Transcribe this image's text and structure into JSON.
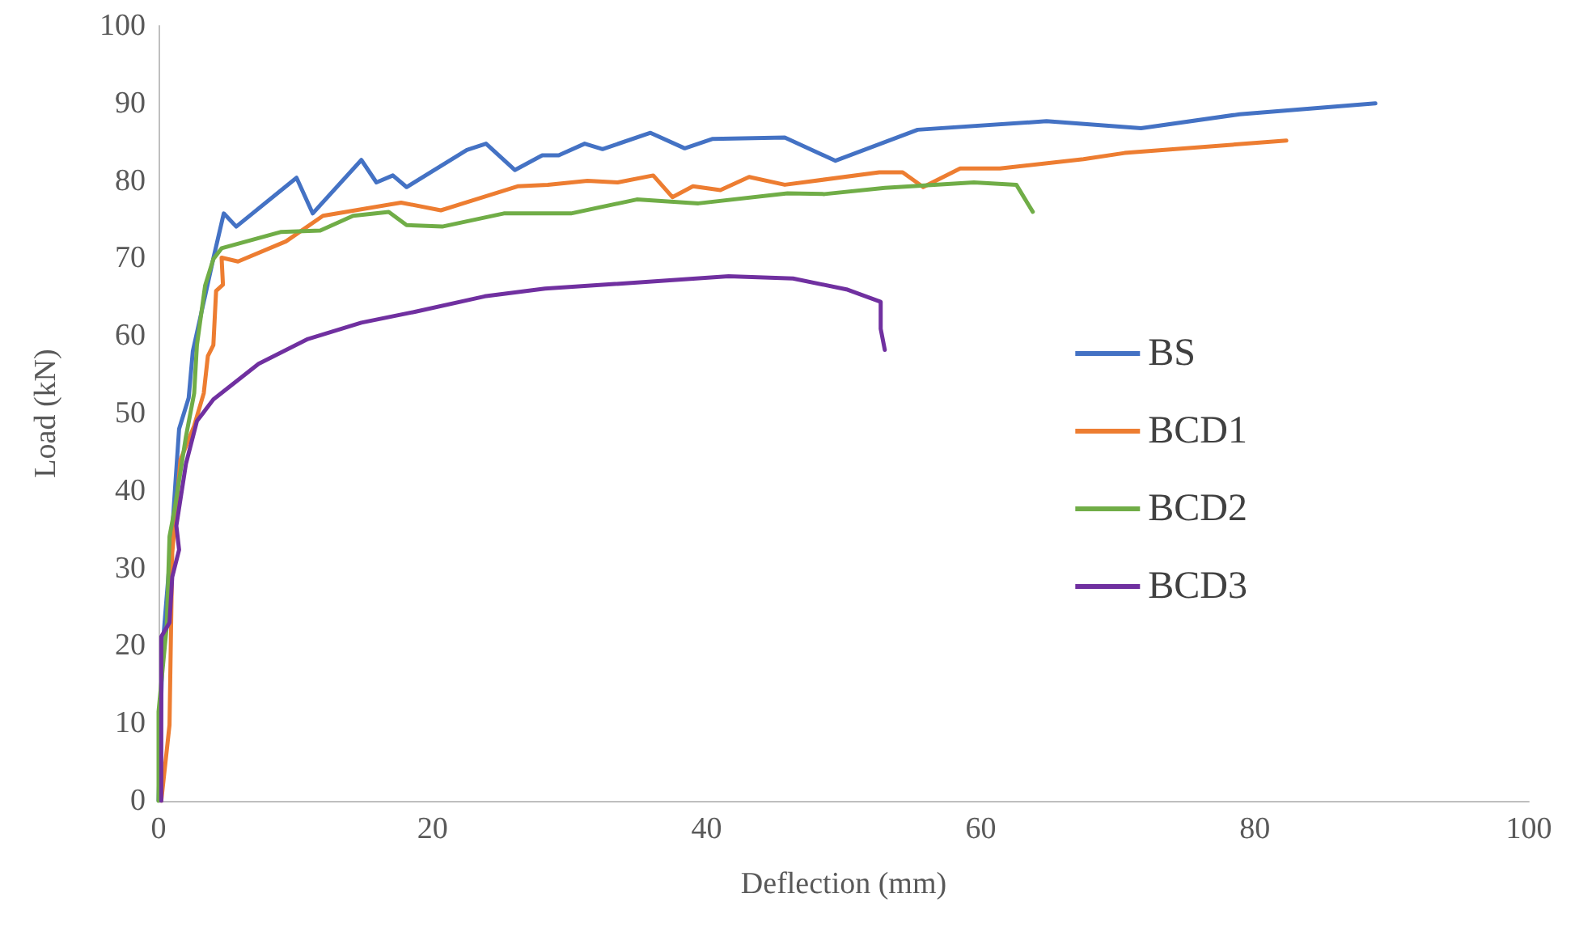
{
  "chart_data": {
    "type": "line",
    "xlabel": "Deflection (mm)",
    "ylabel": "Load (kN)",
    "xlim": [
      0,
      100
    ],
    "xticks": [
      0,
      20,
      40,
      60,
      80,
      100
    ],
    "ylim": [
      0,
      100
    ],
    "yticks": [
      0,
      10,
      20,
      30,
      40,
      50,
      60,
      70,
      80,
      90,
      100
    ],
    "grid": false,
    "legend": "right",
    "marker": "none",
    "line_style": "solid",
    "series": [
      {
        "name": "BS",
        "color": "#4472c4",
        "x": [
          0,
          0.3,
          1,
          1.5,
          2.2,
          2.5,
          3,
          4,
          4.76,
          5.67,
          10.07,
          11.25,
          14.8,
          15.9,
          17.1,
          18.1,
          22.5,
          23.9,
          26.0,
          28.0,
          29.2,
          31.1,
          32.4,
          35.9,
          38.4,
          40.4,
          45.7,
          49.4,
          55.4,
          64.8,
          71.7,
          78.9,
          88.8
        ],
        "values": [
          0,
          20,
          35,
          48,
          52,
          58,
          62,
          70,
          75.8,
          74.1,
          80.4,
          75.8,
          82.7,
          79.8,
          80.7,
          79.2,
          84,
          84.8,
          81.4,
          83.3,
          83.3,
          84.8,
          84.1,
          86.2,
          84.2,
          85.4,
          85.6,
          82.6,
          86.6,
          87.7,
          86.8,
          88.6,
          90
        ]
      },
      {
        "name": "BCD1",
        "color": "#ed7d31",
        "x": [
          0.2,
          0.8,
          1,
          1.6,
          2.6,
          3.3,
          3.6,
          4,
          4.2,
          4.7,
          4.6,
          5.8,
          9.3,
          12.0,
          17.7,
          20.6,
          26.2,
          28.4,
          31.3,
          33.5,
          36.1,
          37.5,
          39,
          41,
          43.1,
          45.7,
          52.6,
          54.3,
          55.8,
          58.5,
          61.4,
          67.5,
          70.5,
          82.3
        ],
        "values": [
          0,
          9.8,
          32,
          44,
          48.4,
          52.6,
          57.4,
          58.8,
          65.8,
          66.6,
          70.1,
          69.6,
          72.2,
          75.5,
          77.2,
          76.2,
          79.3,
          79.5,
          80,
          79.8,
          80.7,
          77.9,
          79.3,
          78.8,
          80.5,
          79.5,
          81.1,
          81.1,
          79.2,
          81.6,
          81.6,
          82.8,
          83.6,
          85.2
        ]
      },
      {
        "name": "BCD2",
        "color": "#70ad47",
        "x": [
          0,
          0,
          0.6,
          0.8,
          1.2,
          2.0,
          2.6,
          2.8,
          3.4,
          4,
          4.6,
          8.9,
          11.8,
          14.2,
          16.8,
          18.1,
          20.7,
          25.2,
          30.1,
          34.9,
          39.4,
          45.9,
          48.6,
          53,
          59.5,
          62.6,
          63.8
        ],
        "values": [
          0,
          11.5,
          22.6,
          34.1,
          37.9,
          47,
          52.6,
          58.8,
          66.5,
          69.9,
          71.3,
          73.4,
          73.6,
          75.5,
          76,
          74.3,
          74.1,
          75.8,
          75.8,
          77.6,
          77.1,
          78.4,
          78.3,
          79.1,
          79.8,
          79.5,
          76
        ]
      },
      {
        "name": "BCD3",
        "color": "#7030a0",
        "x": [
          0.2,
          0.2,
          0.8,
          1,
          1.5,
          1.3,
          2,
          2.8,
          4,
          7.3,
          10.9,
          14.8,
          18.7,
          23.8,
          28.2,
          33.3,
          41.6,
          46.3,
          50.2,
          52.7,
          52.7,
          53
        ],
        "values": [
          0,
          21.2,
          23,
          28.9,
          32.4,
          35.5,
          43.5,
          49,
          51.8,
          56.4,
          59.6,
          61.7,
          63.1,
          65.1,
          66.1,
          66.7,
          67.7,
          67.4,
          66,
          64.4,
          60.9,
          58.2
        ]
      }
    ]
  }
}
